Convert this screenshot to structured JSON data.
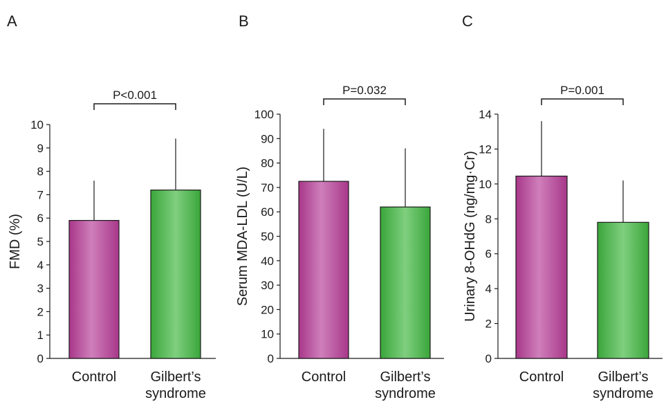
{
  "colors": {
    "control": "#b84d9c",
    "gilbert": "#4db84d",
    "axis": "#1a1a1a"
  },
  "chart_data": [
    {
      "type": "bar",
      "panel_label": "A",
      "categories": [
        "Control",
        "Gilbert’s syndrome"
      ],
      "values": [
        5.9,
        7.2
      ],
      "error_upper": [
        7.6,
        9.4
      ],
      "ylabel": "FMD (%)",
      "ylim": [
        0,
        10
      ],
      "yticks": [
        0,
        1,
        2,
        3,
        4,
        5,
        6,
        7,
        8,
        9,
        10
      ],
      "significance": "P<0.001",
      "grid": false
    },
    {
      "type": "bar",
      "panel_label": "B",
      "categories": [
        "Control",
        "Gilbert’s syndrome"
      ],
      "values": [
        72.5,
        62
      ],
      "error_upper": [
        94,
        86
      ],
      "ylabel": "Serum MDA-LDL (U/L)",
      "ylim": [
        0,
        100
      ],
      "yticks": [
        0,
        10,
        20,
        30,
        40,
        50,
        60,
        70,
        80,
        90,
        100
      ],
      "significance": "P=0.032",
      "grid": false
    },
    {
      "type": "bar",
      "panel_label": "C",
      "categories": [
        "Control",
        "Gilbert’s syndrome"
      ],
      "values": [
        10.45,
        7.8
      ],
      "error_upper": [
        13.6,
        10.2
      ],
      "ylabel": "Urinary 8-OHdG (ng/mg·Cr)",
      "ylim": [
        0,
        14
      ],
      "yticks": [
        0,
        2,
        4,
        6,
        8,
        10,
        12,
        14
      ],
      "significance": "P=0.001",
      "grid": false
    }
  ]
}
